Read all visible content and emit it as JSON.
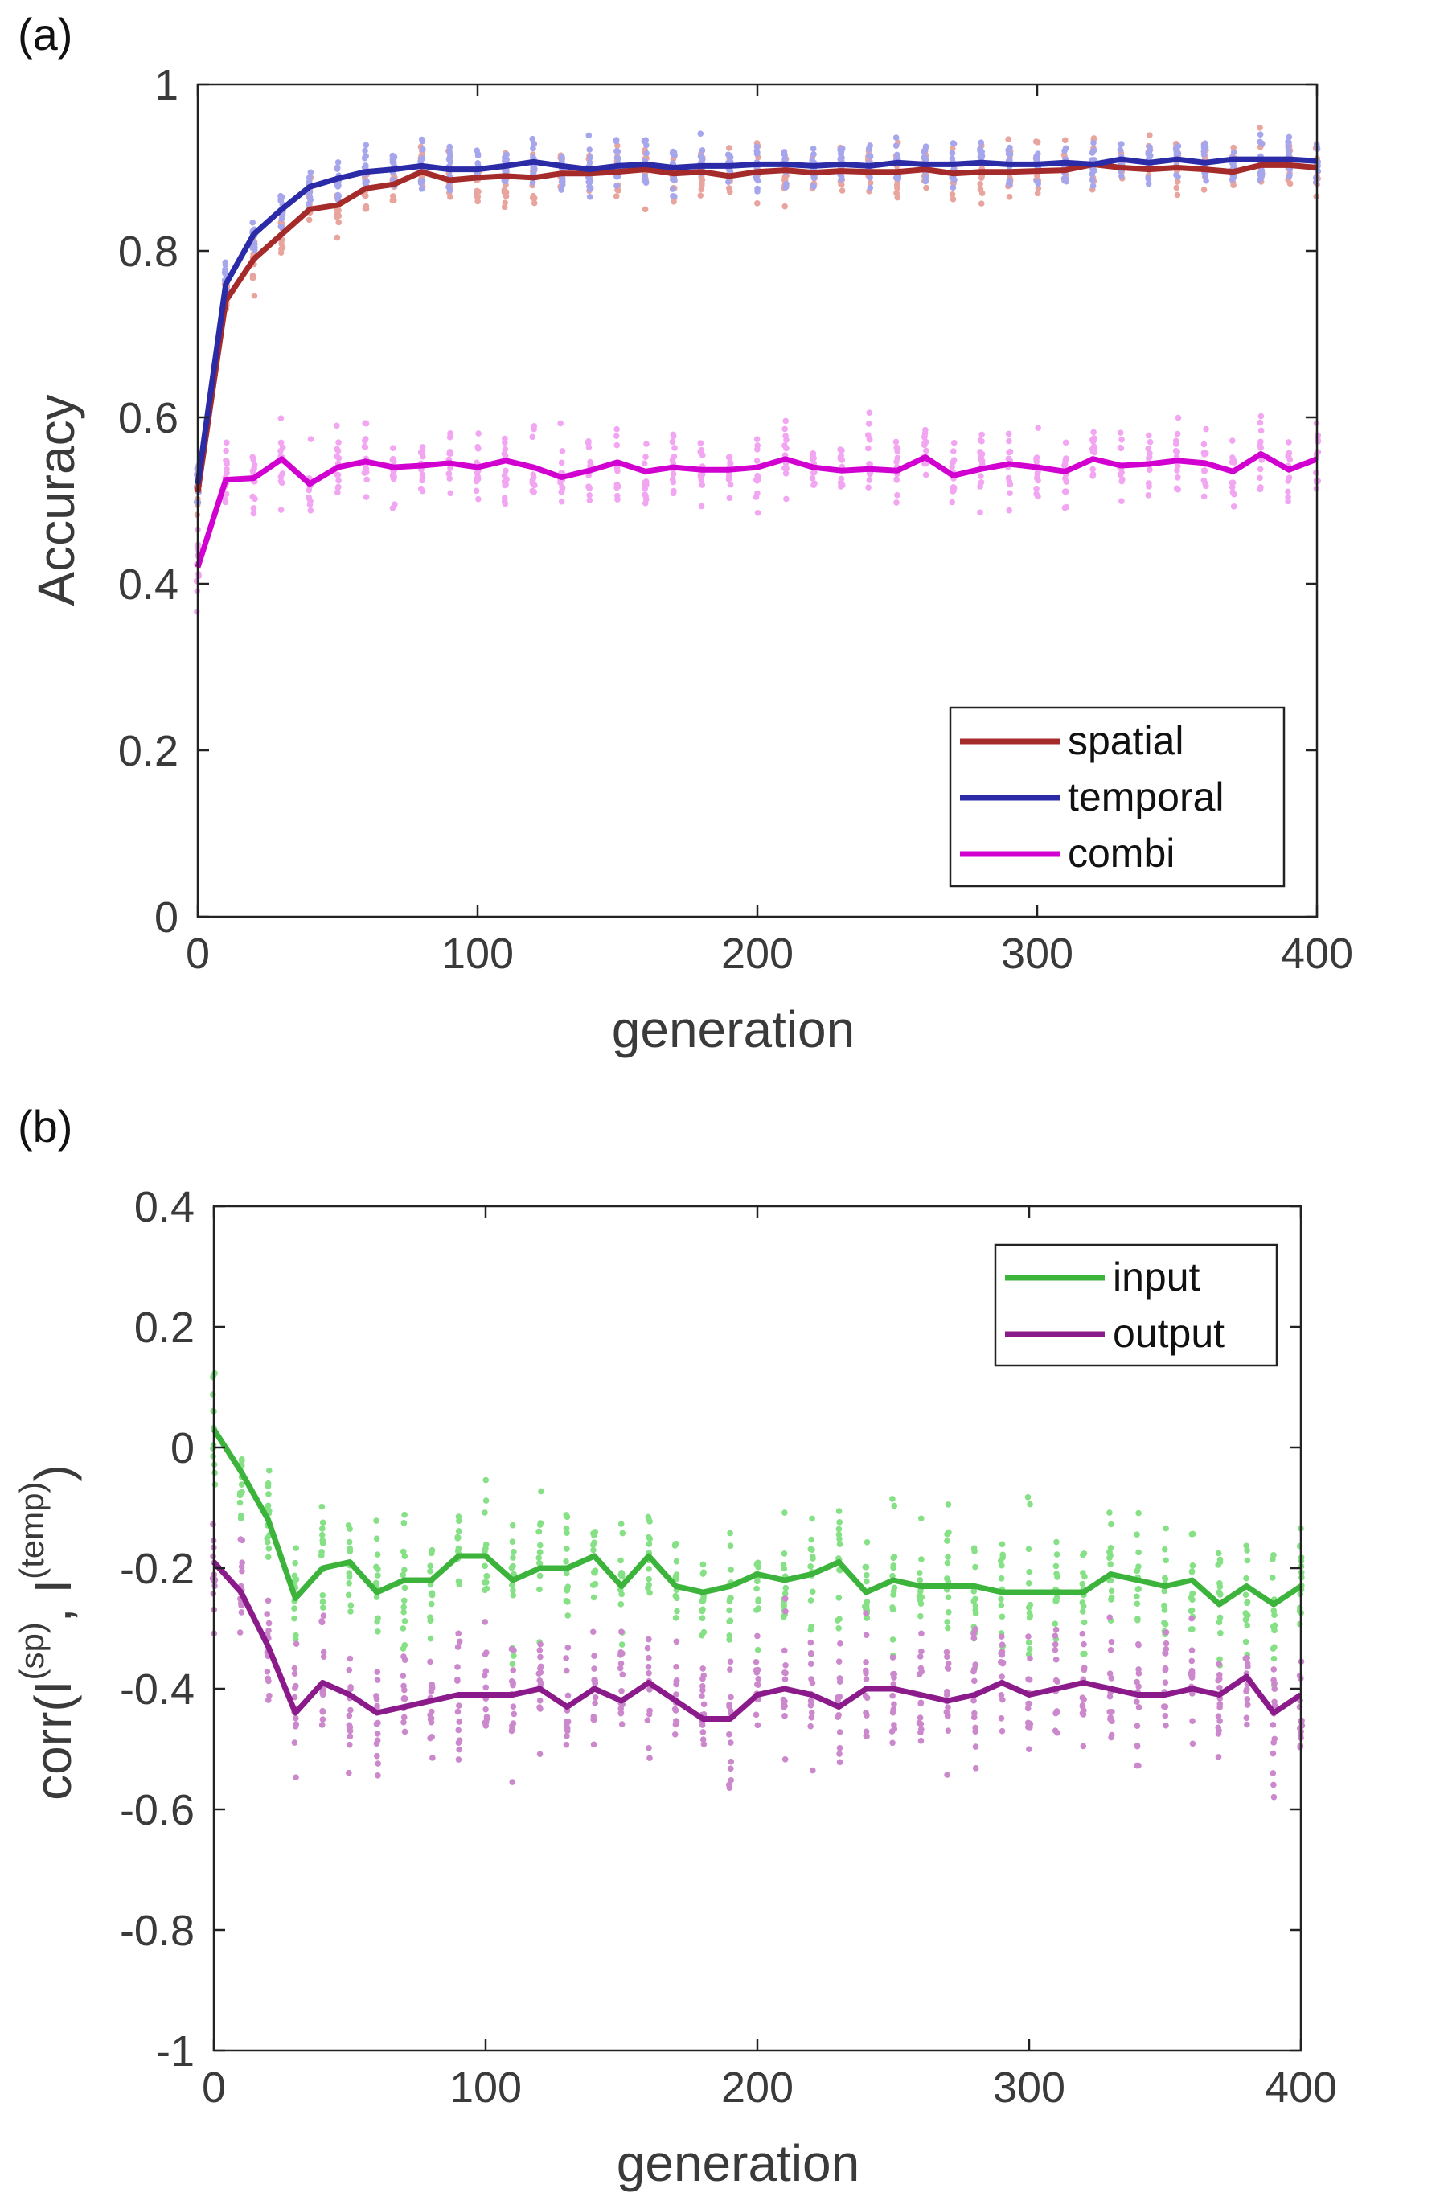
{
  "colors": {
    "spatial": "#a52a2a",
    "spatial_dots": "#e8a59e",
    "temporal": "#2b2ba8",
    "temporal_dots": "#a6a6ec",
    "combi": "#d100d1",
    "combi_dots": "#f2a6f2",
    "input": "#3cb43c",
    "input_dots": "#86e086",
    "output": "#8b1a8b",
    "output_dots": "#cc88cc"
  },
  "chart_data": [
    {
      "panel_label": "(a)",
      "type": "line",
      "xlabel": "generation",
      "ylabel": "Accuracy",
      "xlim": [
        0,
        400
      ],
      "ylim": [
        0,
        1
      ],
      "xticks": [
        0,
        100,
        200,
        300,
        400
      ],
      "xtick_labels": [
        "0",
        "100",
        "200",
        "300",
        "400"
      ],
      "yticks": [
        0,
        0.2,
        0.4,
        0.6,
        0.8,
        1
      ],
      "ytick_labels": [
        "0",
        "0.2",
        "0.4",
        "0.6",
        "0.8",
        "1"
      ],
      "legend_position": "bottom-right",
      "x": [
        0,
        10,
        20,
        30,
        40,
        50,
        60,
        70,
        80,
        90,
        100,
        110,
        120,
        130,
        140,
        150,
        160,
        170,
        180,
        190,
        200,
        210,
        220,
        230,
        240,
        250,
        260,
        270,
        280,
        290,
        300,
        310,
        320,
        330,
        340,
        350,
        360,
        370,
        380,
        390,
        400
      ],
      "series": [
        {
          "name": "spatial",
          "color_key": "spatial",
          "values": [
            0.51,
            0.74,
            0.79,
            0.82,
            0.85,
            0.855,
            0.875,
            0.88,
            0.895,
            0.885,
            0.888,
            0.89,
            0.888,
            0.893,
            0.893,
            0.895,
            0.898,
            0.893,
            0.895,
            0.89,
            0.895,
            0.897,
            0.894,
            0.896,
            0.895,
            0.895,
            0.898,
            0.893,
            0.895,
            0.895,
            0.896,
            0.897,
            0.904,
            0.9,
            0.898,
            0.9,
            0.898,
            0.895,
            0.903,
            0.903,
            0.9
          ]
        },
        {
          "name": "temporal",
          "color_key": "temporal",
          "values": [
            0.52,
            0.76,
            0.82,
            0.85,
            0.877,
            0.887,
            0.895,
            0.898,
            0.902,
            0.898,
            0.898,
            0.902,
            0.907,
            0.902,
            0.898,
            0.902,
            0.904,
            0.9,
            0.902,
            0.902,
            0.904,
            0.904,
            0.902,
            0.904,
            0.902,
            0.906,
            0.904,
            0.904,
            0.906,
            0.904,
            0.904,
            0.906,
            0.904,
            0.91,
            0.906,
            0.91,
            0.906,
            0.91,
            0.91,
            0.91,
            0.908
          ]
        },
        {
          "name": "combi",
          "color_key": "combi",
          "values": [
            0.42,
            0.525,
            0.527,
            0.55,
            0.52,
            0.54,
            0.547,
            0.54,
            0.542,
            0.545,
            0.54,
            0.548,
            0.54,
            0.528,
            0.536,
            0.546,
            0.535,
            0.54,
            0.537,
            0.537,
            0.54,
            0.55,
            0.54,
            0.536,
            0.538,
            0.536,
            0.552,
            0.53,
            0.538,
            0.544,
            0.54,
            0.535,
            0.55,
            0.542,
            0.544,
            0.548,
            0.545,
            0.535,
            0.556,
            0.537,
            0.55
          ]
        }
      ],
      "scatter_spread": {
        "spatial": 0.06,
        "temporal": 0.05,
        "combi": 0.08
      }
    },
    {
      "panel_label": "(b)",
      "type": "line",
      "xlabel": "generation",
      "ylabel_main": "corr(I",
      "ylabel_sup1": "(sp)",
      "ylabel_mid": ", I",
      "ylabel_sup2": "(temp)",
      "ylabel_end": ")",
      "xlim": [
        0,
        400
      ],
      "ylim": [
        -1,
        0.4
      ],
      "xticks": [
        0,
        100,
        200,
        300,
        400
      ],
      "xtick_labels": [
        "0",
        "100",
        "200",
        "300",
        "400"
      ],
      "yticks": [
        -1,
        -0.8,
        -0.6,
        -0.4,
        -0.2,
        0,
        0.2,
        0.4
      ],
      "ytick_labels": [
        "-1",
        "-0.8",
        "-0.6",
        "-0.4",
        "-0.2",
        "0",
        "0.2",
        "0.4"
      ],
      "legend_position": "top-right",
      "x": [
        0,
        10,
        20,
        30,
        40,
        50,
        60,
        70,
        80,
        90,
        100,
        110,
        120,
        130,
        140,
        150,
        160,
        170,
        180,
        190,
        200,
        210,
        220,
        230,
        240,
        250,
        260,
        270,
        280,
        290,
        300,
        310,
        320,
        330,
        340,
        350,
        360,
        370,
        380,
        390,
        400
      ],
      "series": [
        {
          "name": "input",
          "color_key": "input",
          "values": [
            0.03,
            -0.04,
            -0.12,
            -0.25,
            -0.2,
            -0.19,
            -0.24,
            -0.22,
            -0.22,
            -0.18,
            -0.18,
            -0.22,
            -0.2,
            -0.2,
            -0.18,
            -0.23,
            -0.18,
            -0.23,
            -0.24,
            -0.23,
            -0.21,
            -0.22,
            -0.21,
            -0.19,
            -0.24,
            -0.22,
            -0.23,
            -0.23,
            -0.23,
            -0.24,
            -0.24,
            -0.24,
            -0.24,
            -0.21,
            -0.22,
            -0.23,
            -0.22,
            -0.26,
            -0.23,
            -0.26,
            -0.23
          ]
        },
        {
          "name": "output",
          "color_key": "output",
          "values": [
            -0.19,
            -0.24,
            -0.33,
            -0.44,
            -0.39,
            -0.41,
            -0.44,
            -0.43,
            -0.42,
            -0.41,
            -0.41,
            -0.41,
            -0.4,
            -0.43,
            -0.4,
            -0.42,
            -0.39,
            -0.42,
            -0.45,
            -0.45,
            -0.41,
            -0.4,
            -0.41,
            -0.43,
            -0.4,
            -0.4,
            -0.41,
            -0.42,
            -0.41,
            -0.39,
            -0.41,
            -0.4,
            -0.39,
            -0.4,
            -0.41,
            -0.41,
            -0.4,
            -0.41,
            -0.38,
            -0.44,
            -0.41
          ]
        }
      ],
      "scatter_spread": {
        "input": 0.2,
        "output": 0.2
      }
    }
  ]
}
